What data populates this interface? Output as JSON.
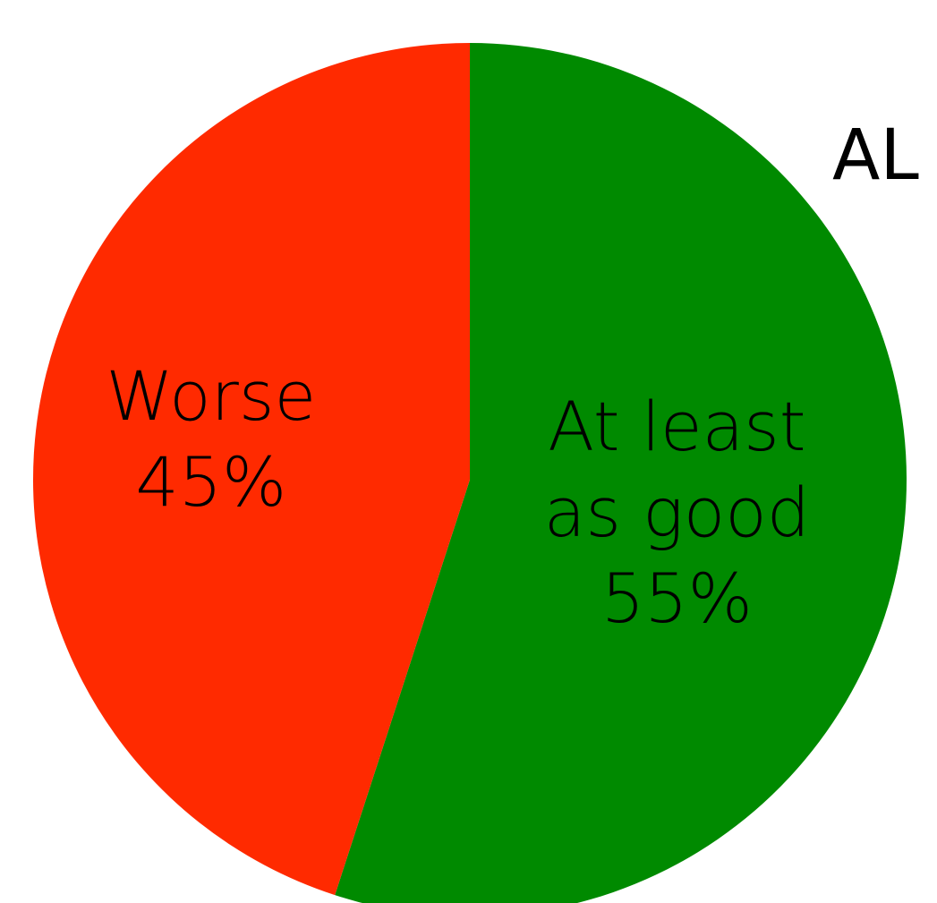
{
  "chart_data": {
    "type": "pie",
    "title": "AL",
    "start_angle_deg": 0,
    "direction": "clockwise",
    "slices": [
      {
        "label_lines": [
          "At least",
          "as good"
        ],
        "percent_label": "55%",
        "value": 55,
        "color": "#008a00"
      },
      {
        "label_lines": [
          "Worse"
        ],
        "percent_label": "45%",
        "value": 45,
        "color": "#ff2a00"
      }
    ]
  }
}
